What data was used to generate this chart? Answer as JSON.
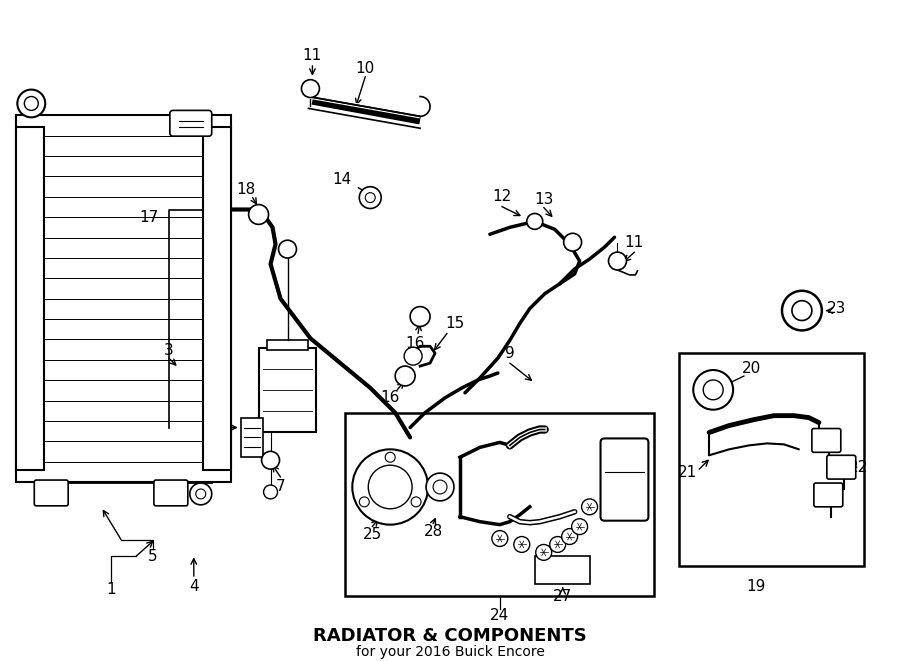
{
  "title": "RADIATOR & COMPONENTS",
  "subtitle": "for your 2016 Buick Encore",
  "bg_color": "#ffffff",
  "line_color": "#000000",
  "fig_width": 9.0,
  "fig_height": 6.61
}
